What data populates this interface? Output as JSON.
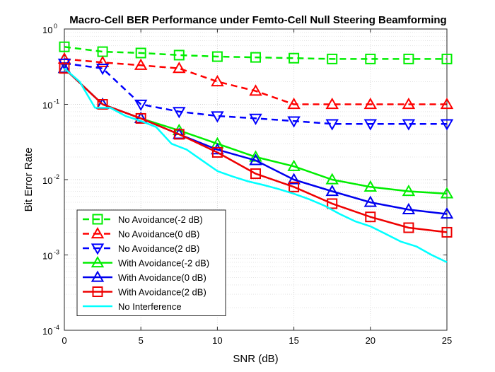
{
  "chart_data": {
    "type": "line",
    "title": "Macro-Cell BER Performance under Femto-Cell Null Steering Beamforming",
    "xlabel": "SNR (dB)",
    "ylabel": "Bit Error Rate",
    "xlim": [
      0,
      25
    ],
    "ylim": [
      0.0001,
      1
    ],
    "yscale": "log",
    "grid": true,
    "legend_position": "bottom-left",
    "x_ticks": [
      "0",
      "5",
      "10",
      "15",
      "20",
      "25"
    ],
    "y_ticks": [
      {
        "base": "10",
        "exp": "-4",
        "value": 0.0001
      },
      {
        "base": "10",
        "exp": "-3",
        "value": 0.001
      },
      {
        "base": "10",
        "exp": "-2",
        "value": 0.01
      },
      {
        "base": "10",
        "exp": "-1",
        "value": 0.1
      },
      {
        "base": "10",
        "exp": "0",
        "value": 1
      }
    ],
    "series": [
      {
        "name": "No Avoidance(-2 dB)",
        "color": "#00ee00",
        "dash": "dashed",
        "marker": "square",
        "x": [
          0,
          2.5,
          5,
          7.5,
          10,
          12.5,
          15,
          17.5,
          20,
          22.5,
          25
        ],
        "y": [
          0.58,
          0.5,
          0.48,
          0.45,
          0.43,
          0.42,
          0.41,
          0.4,
          0.4,
          0.4,
          0.4
        ]
      },
      {
        "name": "No Avoidance(0 dB)",
        "color": "#ff0000",
        "dash": "dashed",
        "marker": "triangle-up",
        "x": [
          0,
          2.5,
          5,
          7.5,
          10,
          12.5,
          15,
          17.5,
          20,
          22.5,
          25
        ],
        "y": [
          0.4,
          0.36,
          0.33,
          0.3,
          0.2,
          0.15,
          0.1,
          0.1,
          0.1,
          0.1,
          0.1
        ]
      },
      {
        "name": "No Avoidance(2 dB)",
        "color": "#0000ff",
        "dash": "dashed",
        "marker": "triangle-down",
        "x": [
          0,
          2.5,
          5,
          7.5,
          10,
          12.5,
          15,
          17.5,
          20,
          22.5,
          25
        ],
        "y": [
          0.35,
          0.3,
          0.1,
          0.08,
          0.07,
          0.065,
          0.06,
          0.055,
          0.055,
          0.055,
          0.055
        ]
      },
      {
        "name": "With Avoidance(-2 dB)",
        "color": "#00ee00",
        "dash": "solid",
        "marker": "triangle-up",
        "x": [
          0,
          2.5,
          5,
          7.5,
          10,
          12.5,
          15,
          17.5,
          20,
          22.5,
          25
        ],
        "y": [
          0.3,
          0.1,
          0.065,
          0.045,
          0.03,
          0.02,
          0.015,
          0.01,
          0.008,
          0.007,
          0.0065
        ]
      },
      {
        "name": "With Avoidance(0 dB)",
        "color": "#0000ee",
        "dash": "solid",
        "marker": "triangle-up",
        "x": [
          0,
          2.5,
          5,
          7.5,
          10,
          12.5,
          15,
          17.5,
          20,
          22.5,
          25
        ],
        "y": [
          0.3,
          0.1,
          0.065,
          0.04,
          0.025,
          0.018,
          0.01,
          0.007,
          0.005,
          0.004,
          0.0035
        ]
      },
      {
        "name": "With Avoidance(2 dB)",
        "color": "#ee0000",
        "dash": "solid",
        "marker": "square",
        "x": [
          0,
          2.5,
          5,
          7.5,
          10,
          12.5,
          15,
          17.5,
          20,
          22.5,
          25
        ],
        "y": [
          0.3,
          0.1,
          0.065,
          0.04,
          0.023,
          0.012,
          0.008,
          0.0048,
          0.0032,
          0.0023,
          0.002
        ]
      },
      {
        "name": "No Interference",
        "color": "#00ffff",
        "dash": "solid",
        "marker": "none",
        "x": [
          0,
          1,
          2,
          3,
          4,
          5,
          6,
          7,
          8,
          9,
          10,
          11,
          12,
          13,
          14,
          15,
          16,
          17,
          18,
          19,
          20,
          21,
          22,
          23,
          24,
          25
        ],
        "y": [
          0.3,
          0.2,
          0.09,
          0.09,
          0.07,
          0.06,
          0.05,
          0.03,
          0.025,
          0.018,
          0.013,
          0.011,
          0.0095,
          0.0085,
          0.0075,
          0.0065,
          0.0055,
          0.0045,
          0.0035,
          0.0028,
          0.0024,
          0.0019,
          0.0015,
          0.0013,
          0.001,
          0.0008
        ]
      }
    ]
  }
}
